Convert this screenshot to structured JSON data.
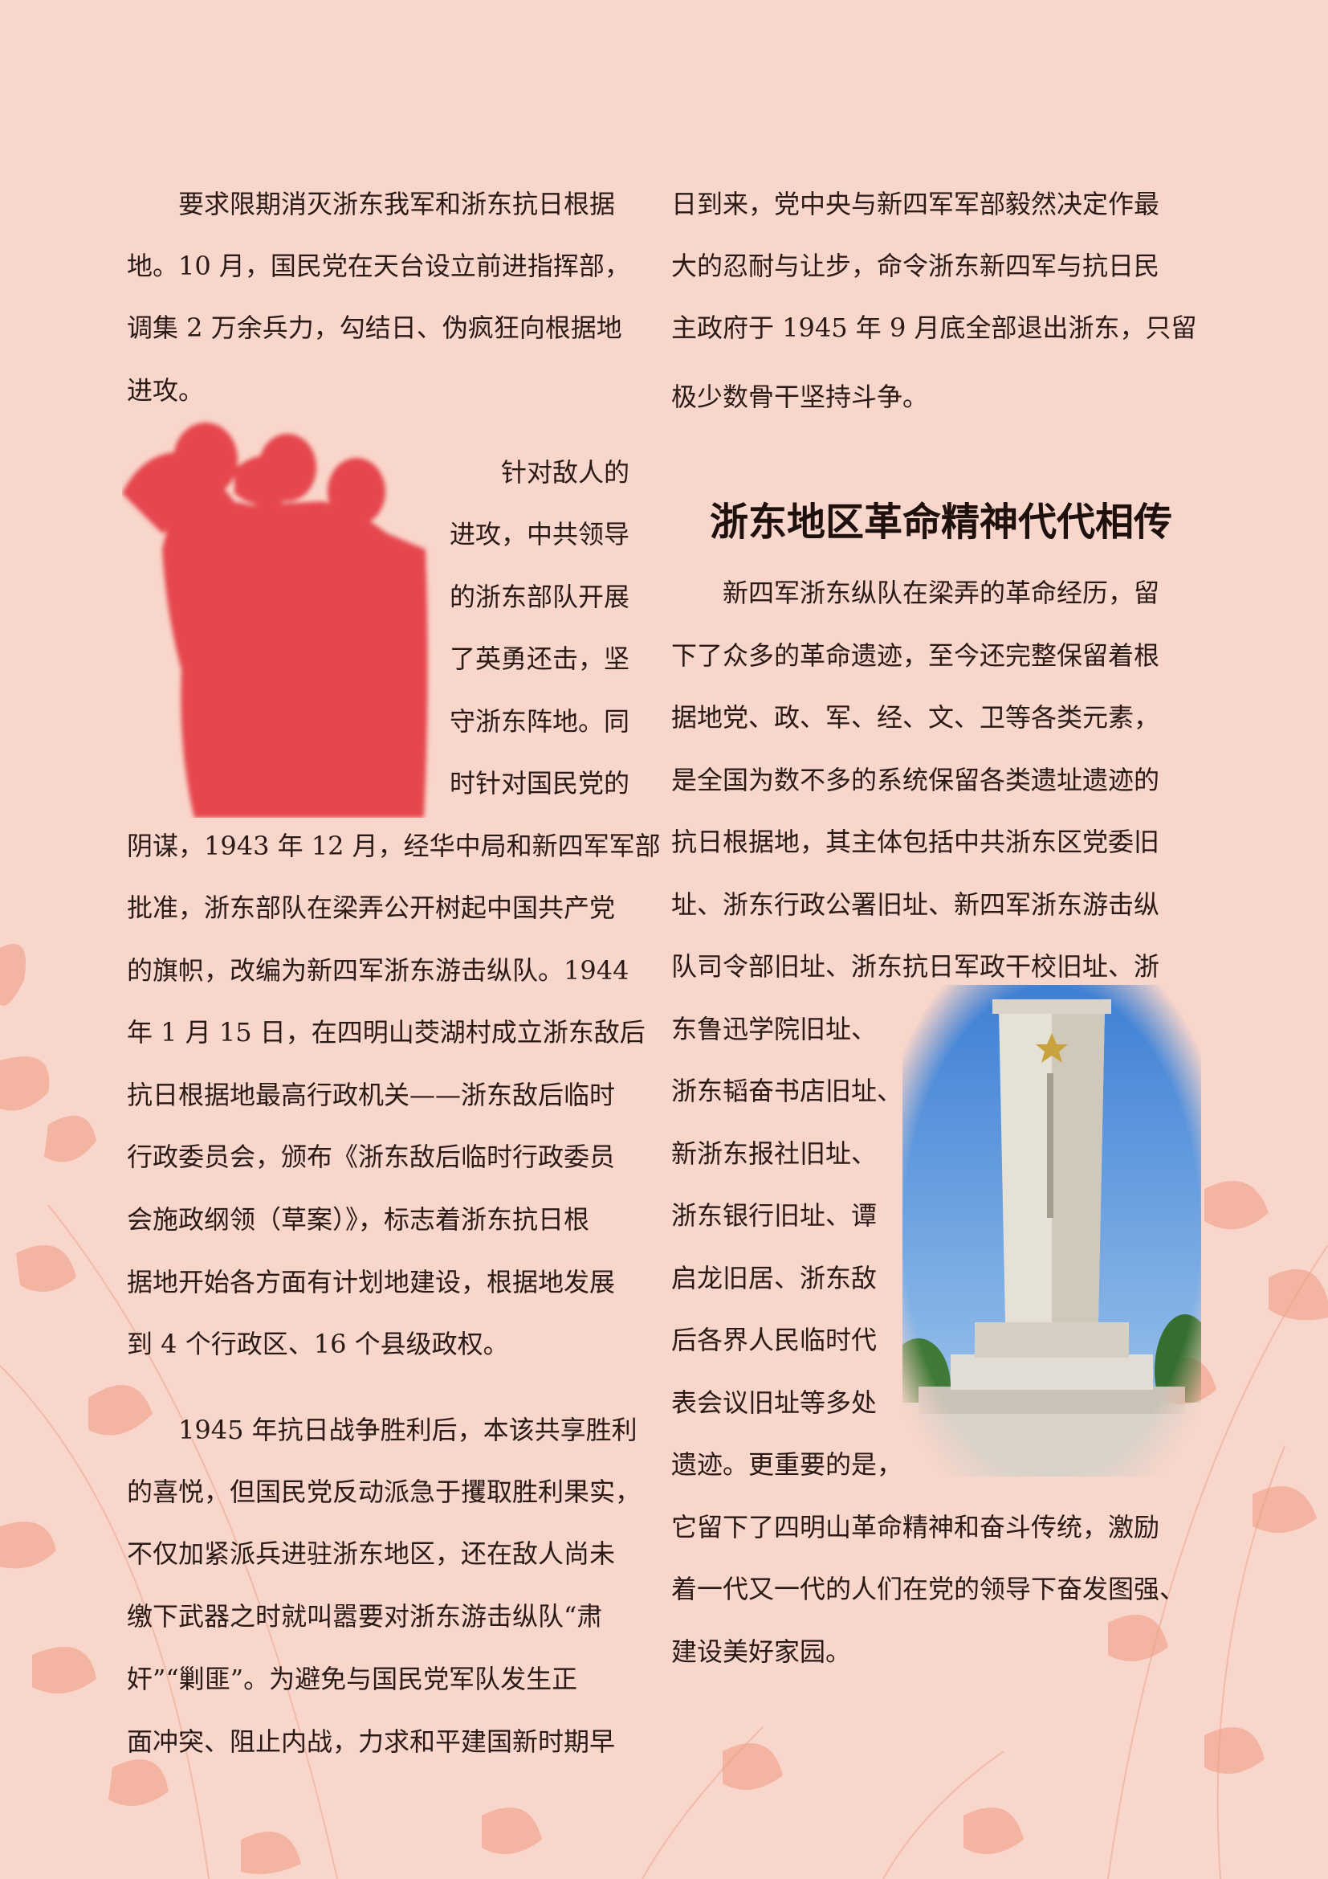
{
  "colors": {
    "background": "#f9d6cb",
    "text": "#2a1a16",
    "silhouette": "#e5474e",
    "sky": "#3d7fd4",
    "reeds": "#ef9a80"
  },
  "left_column": {
    "p1_lines": [
      "要求限期消灭浙东我军和浙东抗日根据",
      "地。10 月，国民党在天台设立前进指挥部，",
      "调集 2 万余兵力，勾结日、伪疯狂向根据地",
      "进攻。"
    ],
    "p2_wrap_lines": [
      "针对敌人的",
      "进攻，中共领导",
      "的浙东部队开展",
      "了英勇还击，坚",
      "守浙东阵地。同",
      "时针对国民党的"
    ],
    "p2_full_lines": [
      "阴谋，1943 年 12 月，经华中局和新四军军部",
      "批准，浙东部队在梁弄公开树起中国共产党",
      "的旗帜，改编为新四军浙东游击纵队。1944",
      "年 1 月 15 日，在四明山茭湖村成立浙东敌后",
      "抗日根据地最高行政机关——浙东敌后临时",
      "行政委员会，颁布《浙东敌后临时行政委员",
      "会施政纲领（草案）》，标志着浙东抗日根",
      "据地开始各方面有计划地建设，根据地发展",
      "到 4 个行政区、16 个县级政权。"
    ],
    "p3_lines": [
      "1945 年抗日战争胜利后，本该共享胜利",
      "的喜悦，但国民党反动派急于攫取胜利果实，",
      "不仅加紧派兵进驻浙东地区，还在敌人尚未",
      "缴下武器之时就叫嚣要对浙东游击纵队“肃",
      "奸”“剿匪”。为避免与国民党军队发生正",
      "面冲突、阻止内战，力求和平建国新时期早"
    ]
  },
  "right_column": {
    "p1_lines": [
      "日到来，党中央与新四军军部毅然决定作最",
      "大的忍耐与让步，命令浙东新四军与抗日民",
      "主政府于 1945 年 9 月底全部退出浙东，只留",
      "极少数骨干坚持斗争。"
    ],
    "heading": "浙东地区革命精神代代相传",
    "p2_full_lines": [
      "新四军浙东纵队在梁弄的革命经历，留",
      "下了众多的革命遗迹，至今还完整保留着根",
      "据地党、政、军、经、文、卫等各类元素，",
      "是全国为数不多的系统保留各类遗址遗迹的",
      "抗日根据地，其主体包括中共浙东区党委旧",
      "址、浙东行政公署旧址、新四军浙东游击纵",
      "队司令部旧址、浙东抗日军政干校旧址、浙"
    ],
    "p2_wrap_lines": [
      "东鲁迅学院旧址、",
      "浙东韬奋书店旧址、",
      "新浙东报社旧址、",
      "浙东银行旧址、谭",
      "启龙旧居、浙东敌",
      "后各界人民临时代",
      "表会议旧址等多处",
      "遗迹。更重要的是，"
    ],
    "p2_end_lines": [
      "它留下了四明山革命精神和奋斗传统，激励",
      "着一代又一代的人们在党的领导下奋发图强、",
      "建设美好家园。"
    ]
  },
  "images": {
    "soldiers_icon": "saluting-soldiers-silhouette-icon",
    "monument_icon": "martyrs-monument-photo-icon"
  }
}
